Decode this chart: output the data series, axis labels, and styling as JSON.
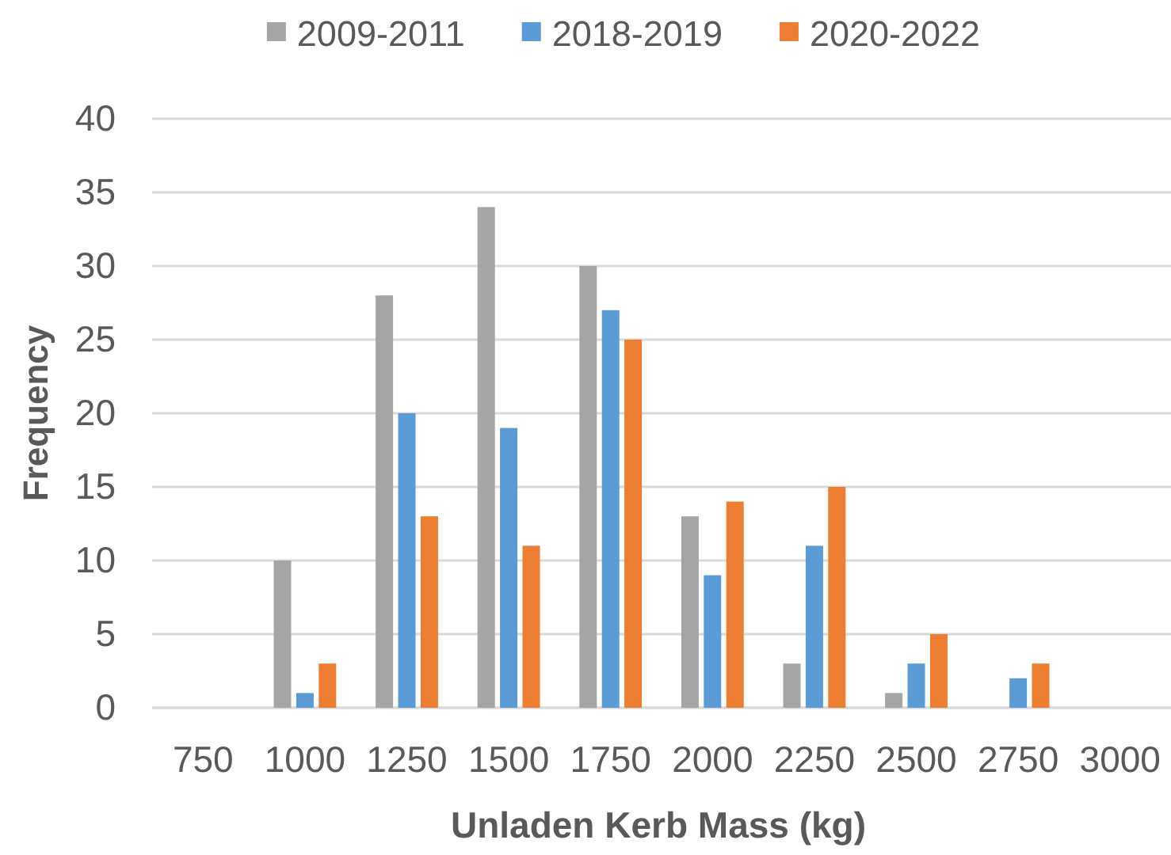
{
  "chart_data": {
    "type": "bar",
    "xlabel": "Unladen Kerb Mass (kg)",
    "ylabel": "Frequency",
    "categories": [
      "750",
      "1000",
      "1250",
      "1500",
      "1750",
      "2000",
      "2250",
      "2500",
      "2750",
      "3000"
    ],
    "series": [
      {
        "name": "2009-2011",
        "color": "#a5a5a5",
        "values": [
          0,
          10,
          28,
          34,
          30,
          13,
          3,
          1,
          0,
          0
        ]
      },
      {
        "name": "2018-2019",
        "color": "#5b9bd5",
        "values": [
          0,
          1,
          20,
          19,
          27,
          9,
          11,
          3,
          2,
          0
        ]
      },
      {
        "name": "2020-2022",
        "color": "#ed7d31",
        "values": [
          0,
          3,
          13,
          11,
          25,
          14,
          15,
          5,
          3,
          0
        ]
      }
    ],
    "ylim": [
      0,
      40
    ],
    "yticks": [
      0,
      5,
      10,
      15,
      20,
      25,
      30,
      35,
      40
    ],
    "grid": "y",
    "legend": "top"
  }
}
